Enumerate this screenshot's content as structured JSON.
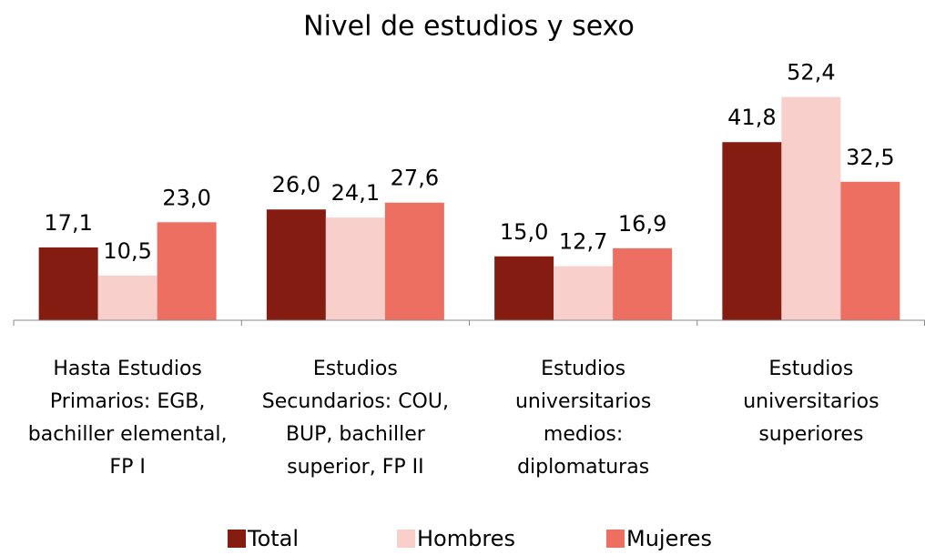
{
  "chart_data": {
    "type": "bar",
    "title": "Nivel de estudios y sexo",
    "categories": [
      "Hasta Estudios Primarios: EGB, bachiller elemental, FP I",
      "Estudios Secundarios: COU, BUP, bachiller superior, FP II",
      "Estudios universitarios medios: diplomaturas",
      "Estudios universitarios superiores"
    ],
    "series": [
      {
        "name": "Total",
        "color": "#841c12",
        "values": [
          17.1,
          26.0,
          15.0,
          41.8
        ],
        "value_labels": [
          "17,1",
          "26,0",
          "15,0",
          "41,8"
        ]
      },
      {
        "name": "Hombres",
        "color": "#f9cfcb",
        "values": [
          10.5,
          24.1,
          12.7,
          52.4
        ],
        "value_labels": [
          "10,5",
          "24,1",
          "12,7",
          "52,4"
        ]
      },
      {
        "name": "Mujeres",
        "color": "#ec6f62",
        "values": [
          23.0,
          27.6,
          16.9,
          32.5
        ],
        "value_labels": [
          "23,0",
          "27,6",
          "16,9",
          "32,5"
        ]
      }
    ],
    "ylim": [
      0,
      60
    ],
    "legend": "bottom"
  }
}
